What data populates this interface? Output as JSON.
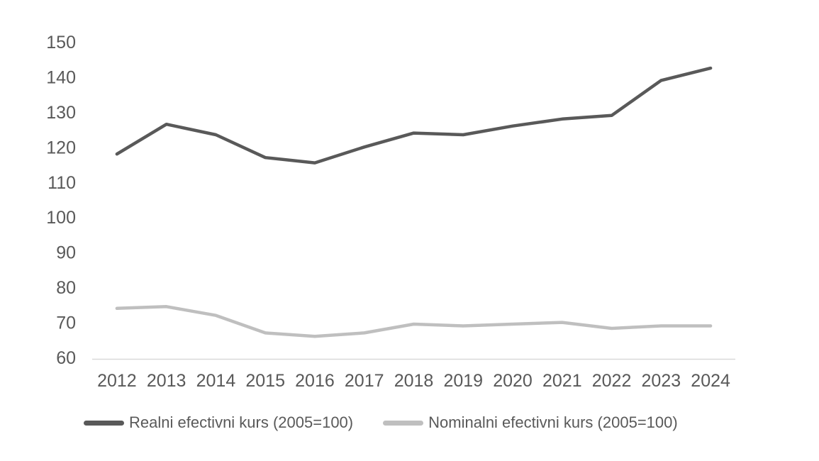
{
  "chart_data": {
    "type": "line",
    "title": "",
    "xlabel": "",
    "ylabel": "",
    "categories": [
      "2012",
      "2013",
      "2014",
      "2015",
      "2016",
      "2017",
      "2018",
      "2019",
      "2020",
      "2021",
      "2022",
      "2023",
      "2024"
    ],
    "series": [
      {
        "name": "Realni efectivni kurs (2005=100)",
        "color": "#595959",
        "values": [
          118,
          126.5,
          123.5,
          117,
          115.5,
          120,
          124,
          123.5,
          126,
          128,
          129,
          139,
          142.5
        ]
      },
      {
        "name": "Nominalni efectivni kurs (2005=100)",
        "color": "#bfbfbf",
        "values": [
          74,
          74.5,
          72,
          67,
          66,
          67,
          69.5,
          69,
          69.5,
          70,
          68.3,
          69,
          69
        ]
      }
    ],
    "ylim": [
      60,
      150
    ],
    "y_ticks": [
      60,
      70,
      80,
      90,
      100,
      110,
      120,
      130,
      140,
      150
    ],
    "grid": false,
    "legend_position": "bottom",
    "axis_line_color": "#d9d9d9",
    "tick_label_color": "#595959",
    "background_color": "#ffffff"
  }
}
